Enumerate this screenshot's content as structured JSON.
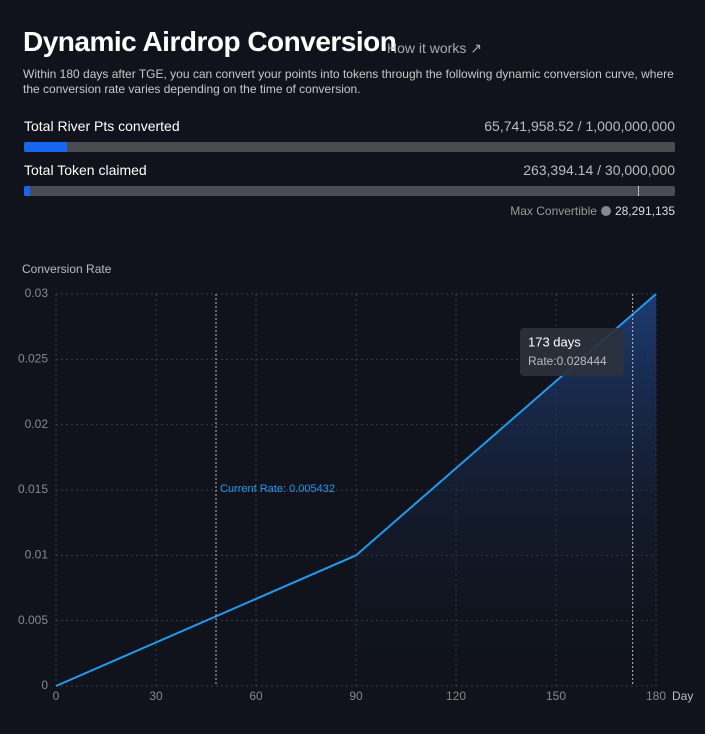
{
  "header": {
    "title": "Dynamic Airdrop Conversion",
    "link": "How it works ↗",
    "description": "Within 180 days after TGE, you can convert your points into tokens through the following dynamic conversion curve, where the conversion rate varies depending on the time of conversion."
  },
  "progress": [
    {
      "label": "Total River Pts converted",
      "value": 65741958.52,
      "total": 1000000000,
      "value_label": "65,741,958.52 / 1,000,000,000"
    },
    {
      "label": "Total Token claimed",
      "value": 263394.14,
      "total": 30000000,
      "value_label": "263,394.14 / 30,000,000",
      "max": {
        "label": "Max Convertible",
        "value": 28291135,
        "value_label": "28,291,135"
      }
    }
  ],
  "chart_data": {
    "type": "line",
    "y_label": "Conversion Rate",
    "x_label": "Day",
    "x": [
      0,
      90,
      180
    ],
    "values": [
      0,
      0.01,
      0.03
    ],
    "color": "#1e9bef",
    "xlim": [
      0,
      180
    ],
    "ylim": [
      0,
      0.03
    ],
    "xticks": [
      0,
      30,
      60,
      90,
      120,
      150,
      180
    ],
    "yticks": [
      0,
      0.005,
      0.01,
      0.015,
      0.02,
      0.025,
      0.03
    ],
    "grid": true,
    "current": {
      "x": 48,
      "label": "Current Rate: 0.005432"
    },
    "tooltip": {
      "x": 173,
      "value": 0.028444,
      "title": "173 days",
      "label": "Rate:0.028444"
    }
  }
}
